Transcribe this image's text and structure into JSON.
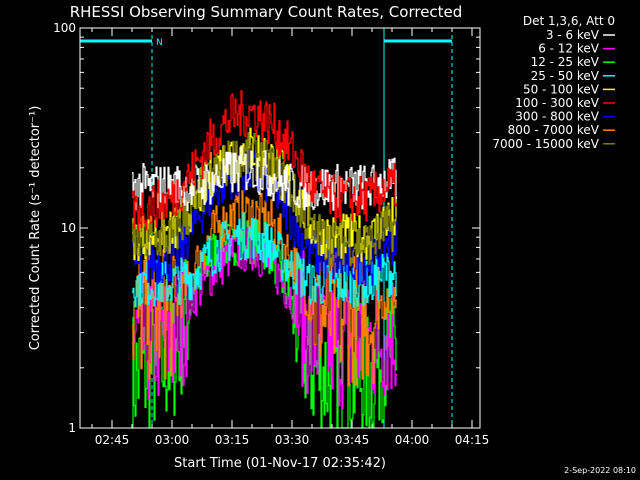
{
  "header": {
    "title": "RHESSI Observing Summary Count Rates, Corrected",
    "timestamp": "2-Sep-2022 08:10"
  },
  "chart_data": {
    "type": "line",
    "title": "RHESSI Observing Summary Count Rates, Corrected",
    "xlabel": "Start Time (01-Nov-17 02:35:42)",
    "ylabel": "Corrected Count Rate (s⁻¹ detector⁻¹)",
    "yscale": "log",
    "ylim": [
      1,
      100
    ],
    "xlim_minutes": [
      "02:37",
      "04:17"
    ],
    "x_ticks": [
      "02:45",
      "03:00",
      "03:15",
      "03:30",
      "03:45",
      "04:00",
      "04:15"
    ],
    "y_ticks": [
      "1",
      "10",
      "100"
    ],
    "legend_title": "Det 1,3,6, Att 0",
    "legend_placement": "right",
    "annotations": {
      "night_marker": "N",
      "night_intervals": [
        [
          "02:37",
          "02:55"
        ],
        [
          "03:53",
          "04:10"
        ]
      ]
    },
    "x": [
      "02:50",
      "03:00",
      "03:05",
      "03:10",
      "03:15",
      "03:20",
      "03:25",
      "03:30",
      "03:35",
      "03:40",
      "03:45",
      "03:50",
      "03:53"
    ],
    "series": [
      {
        "name": "3 - 6 keV",
        "color": "#ffffff",
        "values": [
          16,
          16,
          16,
          17,
          19,
          20,
          18,
          16,
          16,
          16,
          16,
          16,
          17
        ]
      },
      {
        "name": "6 - 12 keV",
        "color": "#ff00ff",
        "values": [
          2.7,
          2.8,
          4.5,
          6,
          7.5,
          8,
          6.5,
          4.5,
          2.8,
          2.7,
          2.7,
          2.7,
          3
        ]
      },
      {
        "name": "12 - 25 keV",
        "color": "#00ff00",
        "values": [
          1.8,
          2.2,
          4.5,
          7.5,
          8.5,
          8.8,
          7.5,
          4,
          2,
          1.8,
          1.8,
          1.8,
          2.5
        ]
      },
      {
        "name": "25 - 50 keV",
        "color": "#00ffff",
        "values": [
          5.3,
          5.3,
          5.8,
          7.5,
          9,
          9.2,
          8,
          6.2,
          5.3,
          5.3,
          5.3,
          5.3,
          6
        ]
      },
      {
        "name": "50 - 100 keV",
        "color": "#ffff00",
        "values": [
          9,
          9.5,
          13,
          19,
          24,
          25,
          22,
          16,
          10,
          9,
          9,
          9,
          11
        ]
      },
      {
        "name": "100 - 300 keV",
        "color": "#ff0000",
        "values": [
          12,
          14,
          19,
          28,
          36,
          38,
          33,
          24,
          16,
          14,
          14,
          14,
          16
        ]
      },
      {
        "name": "300 - 800 keV",
        "color": "#0000ff",
        "values": [
          6.5,
          7,
          10,
          15,
          18.5,
          19,
          16.5,
          11,
          7.5,
          6.8,
          6.8,
          6.8,
          8.5
        ]
      },
      {
        "name": "800 - 7000 keV",
        "color": "#ff8000",
        "values": [
          3.6,
          3.8,
          6,
          9.5,
          11.5,
          12,
          10.5,
          7,
          4,
          3.6,
          3.6,
          3.6,
          4.5
        ]
      },
      {
        "name": "7000 - 15000 keV",
        "color": "#808000",
        "values": [
          8.5,
          9,
          12.5,
          18,
          22,
          23,
          20,
          15,
          9.5,
          8.5,
          8.5,
          8.5,
          10
        ]
      }
    ]
  }
}
